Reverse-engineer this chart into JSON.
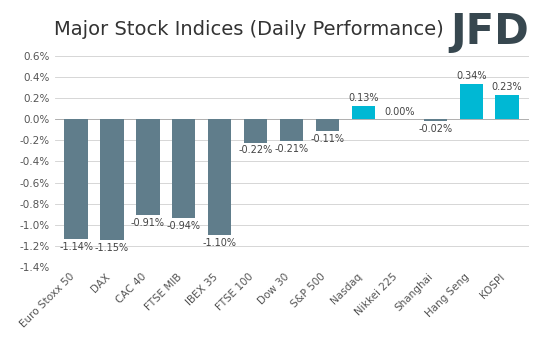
{
  "categories": [
    "Euro Stoxx 50",
    "DAX",
    "CAC 40",
    "FTSE MIB",
    "IBEX 35",
    "FTSE 100",
    "Dow 30",
    "S&P 500",
    "Nasdaq",
    "Nikkei 225",
    "Shanghai",
    "Hang Seng",
    "KOSPI"
  ],
  "values": [
    -1.14,
    -1.15,
    -0.91,
    -0.94,
    -1.1,
    -0.22,
    -0.21,
    -0.11,
    0.13,
    0.0,
    -0.02,
    0.34,
    0.23
  ],
  "labels": [
    "-1.14%",
    "-1.15%",
    "-0.91%",
    "-0.94%",
    "-1.10%",
    "-0.22%",
    "-0.21%",
    "-0.11%",
    "0.13%",
    "0.00%",
    "-0.02%",
    "0.34%",
    "0.23%"
  ],
  "negative_color": "#607d8b",
  "positive_color": "#00b8d4",
  "title": "Major Stock Indices (Daily Performance)",
  "ylim": [
    -1.4,
    0.7
  ],
  "yticks": [
    -1.4,
    -1.2,
    -1.0,
    -0.8,
    -0.6,
    -0.4,
    -0.2,
    0.0,
    0.2,
    0.4,
    0.6
  ],
  "background_color": "#ffffff",
  "title_fontsize": 14,
  "label_fontsize": 7,
  "tick_fontsize": 7.5,
  "jfd_color": "#37474f",
  "jfd_fontsize": 30
}
